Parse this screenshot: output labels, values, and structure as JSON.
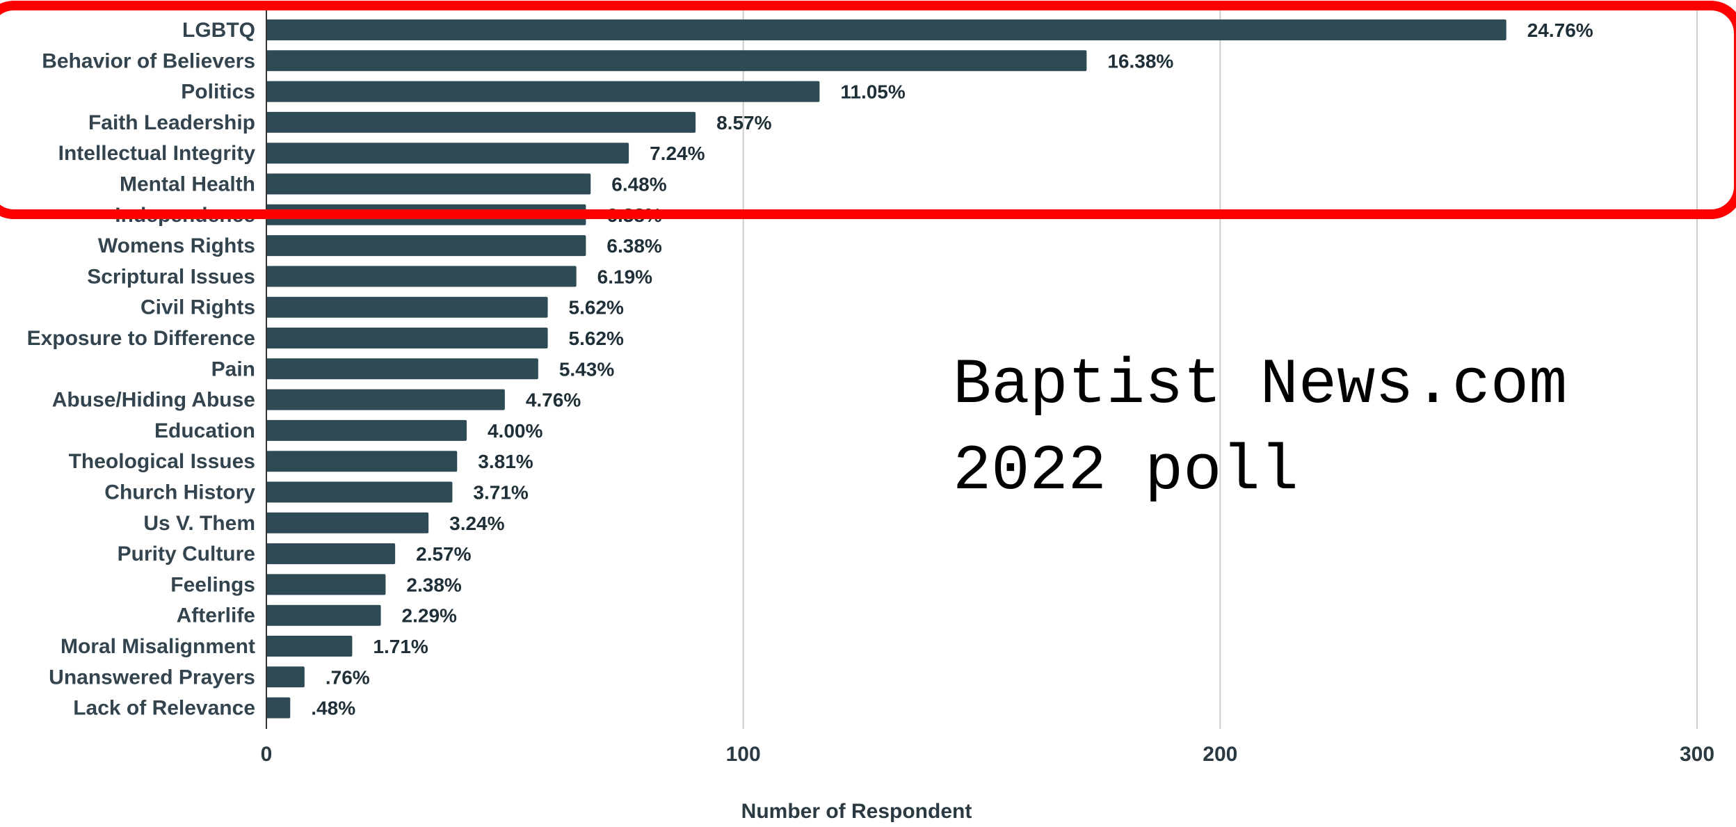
{
  "chart_data": {
    "type": "bar",
    "orientation": "horizontal",
    "categories": [
      "LGBTQ",
      "Behavior of Believers",
      "Politics",
      "Faith Leadership",
      "Intellectual Integrity",
      "Mental Health",
      "Independence",
      "Womens Rights",
      "Scriptural Issues",
      "Civil Rights",
      "Exposure to Difference",
      "Pain",
      "Abuse/Hiding Abuse",
      "Education",
      "Theological Issues",
      "Church History",
      "Us V. Them",
      "Purity Culture",
      "Feelings",
      "Afterlife",
      "Moral Misalignment",
      "Unanswered Prayers",
      "Lack of Relevance"
    ],
    "values": [
      260,
      172,
      116,
      90,
      76,
      68,
      67,
      67,
      65,
      59,
      59,
      57,
      50,
      42,
      40,
      39,
      34,
      27,
      25,
      24,
      18,
      8,
      5
    ],
    "labels": [
      "24.76%",
      "16.38%",
      "11.05%",
      "8.57%",
      "7.24%",
      "6.48%",
      "6.38%",
      "6.38%",
      "6.19%",
      "5.62%",
      "5.62%",
      "5.43%",
      "4.76%",
      "4.00%",
      "3.81%",
      "3.71%",
      "3.24%",
      "2.57%",
      "2.38%",
      "2.29%",
      "1.71%",
      ".76%",
      ".48%"
    ],
    "xlabel": "Number of Respondent",
    "ylabel": "",
    "xlim": [
      0,
      300
    ],
    "xticks": [
      0,
      100,
      200,
      300
    ],
    "grid": true,
    "bar_color": "#2e4a54",
    "highlight_color": "#ff0000"
  },
  "watermark": {
    "line1": "Baptist News.com",
    "line2": "2022 poll"
  }
}
